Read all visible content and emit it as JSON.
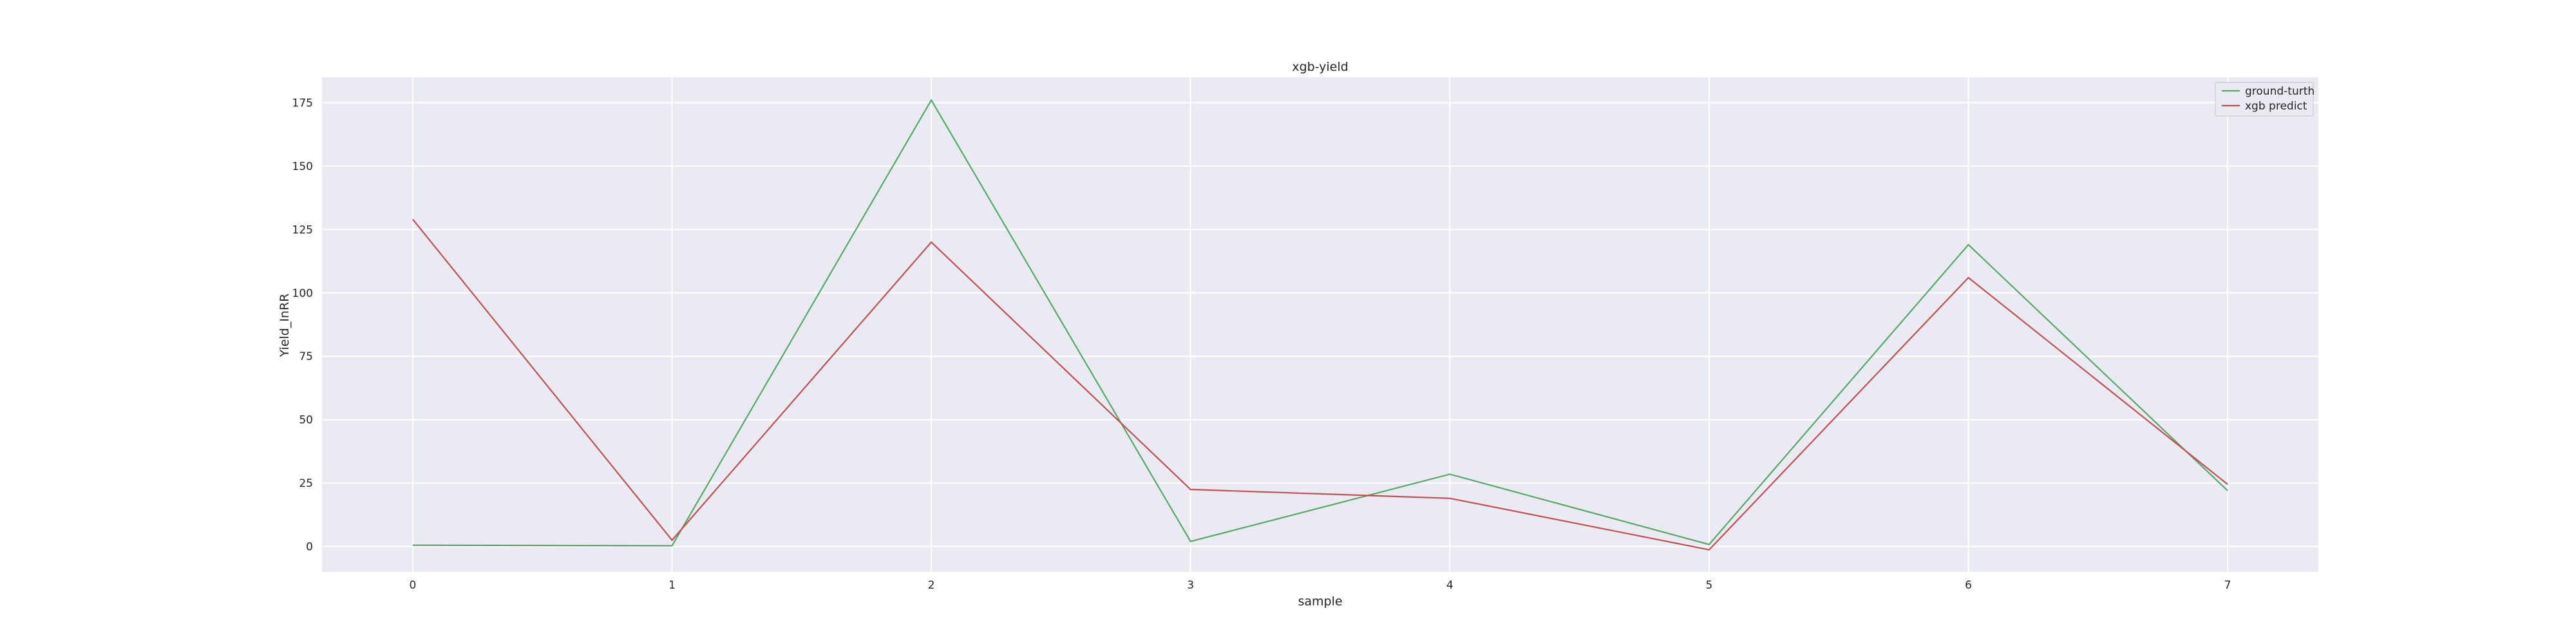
{
  "chart_data": {
    "type": "line",
    "title": "xgb-yield",
    "xlabel": "sample",
    "ylabel": "Yield_InRR",
    "x": [
      0,
      1,
      2,
      3,
      4,
      5,
      6,
      7
    ],
    "xticks": [
      "0",
      "1",
      "2",
      "3",
      "4",
      "5",
      "6",
      "7"
    ],
    "yticks": [
      "0",
      "25",
      "50",
      "75",
      "100",
      "125",
      "150",
      "175"
    ],
    "xlim": [
      -0.35,
      7.35
    ],
    "ylim": [
      -10,
      185
    ],
    "grid": true,
    "legend_position": "top-right",
    "series": [
      {
        "name": "ground-turth",
        "color": "#55a868",
        "values": [
          0.5,
          0.3,
          176,
          2,
          28.5,
          0.8,
          119,
          22
        ]
      },
      {
        "name": "xgb predict",
        "color": "#c44e52",
        "values": [
          129,
          2.5,
          120,
          22.5,
          19,
          -1.3,
          106,
          24.5
        ]
      }
    ]
  }
}
